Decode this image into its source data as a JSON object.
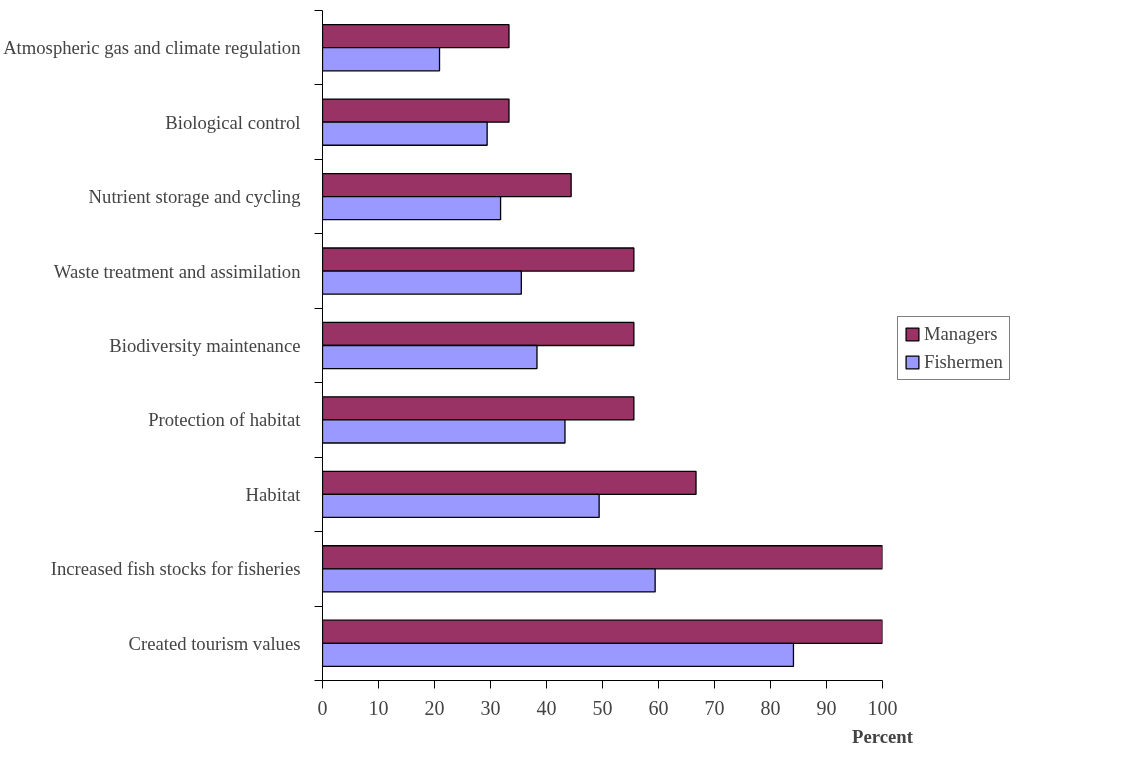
{
  "chart_data": {
    "type": "bar",
    "orientation": "horizontal",
    "xlabel": "Percent",
    "categories": [
      "Atmospheric gas and climate regulation",
      "Biological control",
      "Nutrient storage and cycling",
      "Waste treatment and assimilation",
      "Biodiversity maintenance",
      "Protection of habitat",
      "Habitat",
      "Increased fish stocks for fisheries",
      "Created tourism values"
    ],
    "series": [
      {
        "name": "Managers",
        "color": "#993366",
        "values": [
          33.3,
          33.3,
          44.4,
          55.6,
          55.6,
          55.6,
          66.7,
          100,
          100
        ]
      },
      {
        "name": "Fishermen",
        "color": "#9999ff",
        "values": [
          20.9,
          29.4,
          31.8,
          35.5,
          38.3,
          43.3,
          49.4,
          59.4,
          84.1
        ]
      }
    ],
    "xlim": [
      0,
      100
    ],
    "xticks": [
      0,
      10,
      20,
      30,
      40,
      50,
      60,
      70,
      80,
      90,
      100
    ],
    "grid": false,
    "legend": "right"
  }
}
